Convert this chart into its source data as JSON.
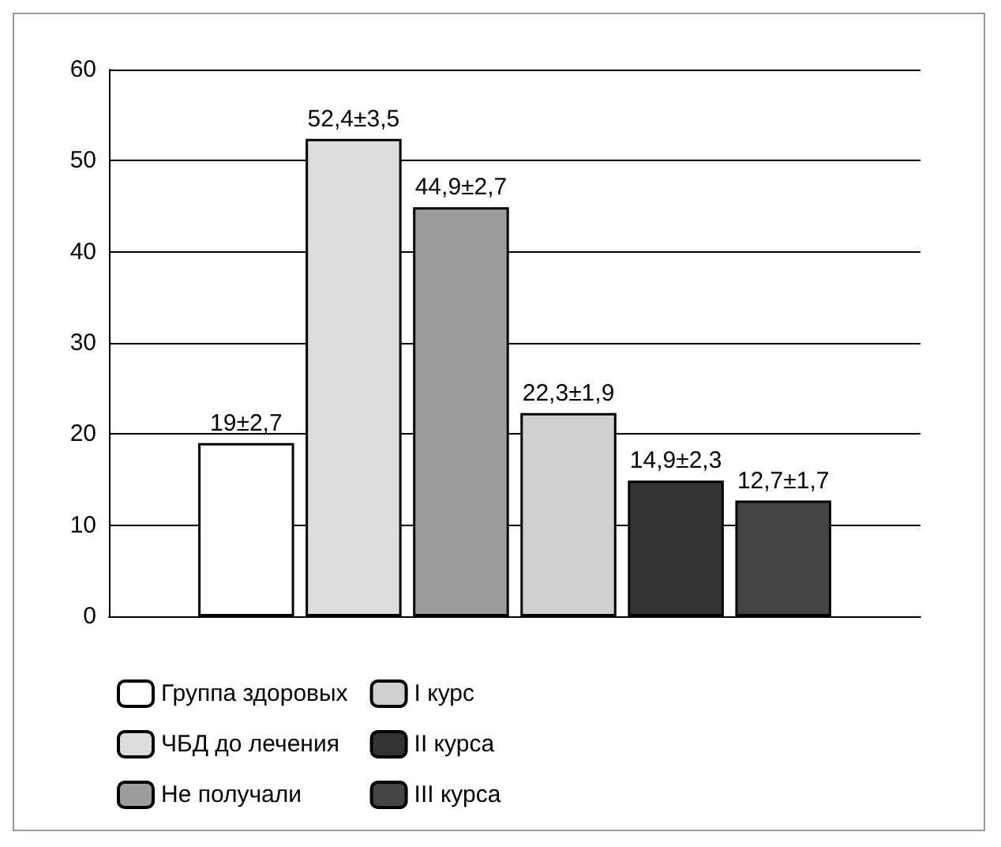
{
  "chart_data": {
    "type": "bar",
    "categories": [
      null
    ],
    "ylim": [
      0,
      60
    ],
    "yticks": [
      0,
      10,
      20,
      30,
      40,
      50,
      60
    ],
    "grid": "y",
    "legend": "bottom",
    "series": [
      {
        "name": "Группа здоровых",
        "color": "#ffffff",
        "values": [
          19
        ],
        "value_labels": [
          "19±2,7"
        ]
      },
      {
        "name": "ЧБД до лечения",
        "color": "#dcdcdc",
        "values": [
          52.4
        ],
        "value_labels": [
          "52,4±3,5"
        ]
      },
      {
        "name": "Не получали",
        "color": "#9c9c9c",
        "values": [
          44.9
        ],
        "value_labels": [
          "44,9±2,7"
        ]
      },
      {
        "name": "I курс",
        "color": "#cfcfcf",
        "values": [
          22.3
        ],
        "value_labels": [
          "22,3±1,9"
        ]
      },
      {
        "name": "II курса",
        "color": "#333333",
        "values": [
          14.9
        ],
        "value_labels": [
          "14,9±2,3"
        ]
      },
      {
        "name": "III курса",
        "color": "#444444",
        "values": [
          12.7
        ],
        "value_labels": [
          "12,7±1,7"
        ]
      }
    ]
  }
}
